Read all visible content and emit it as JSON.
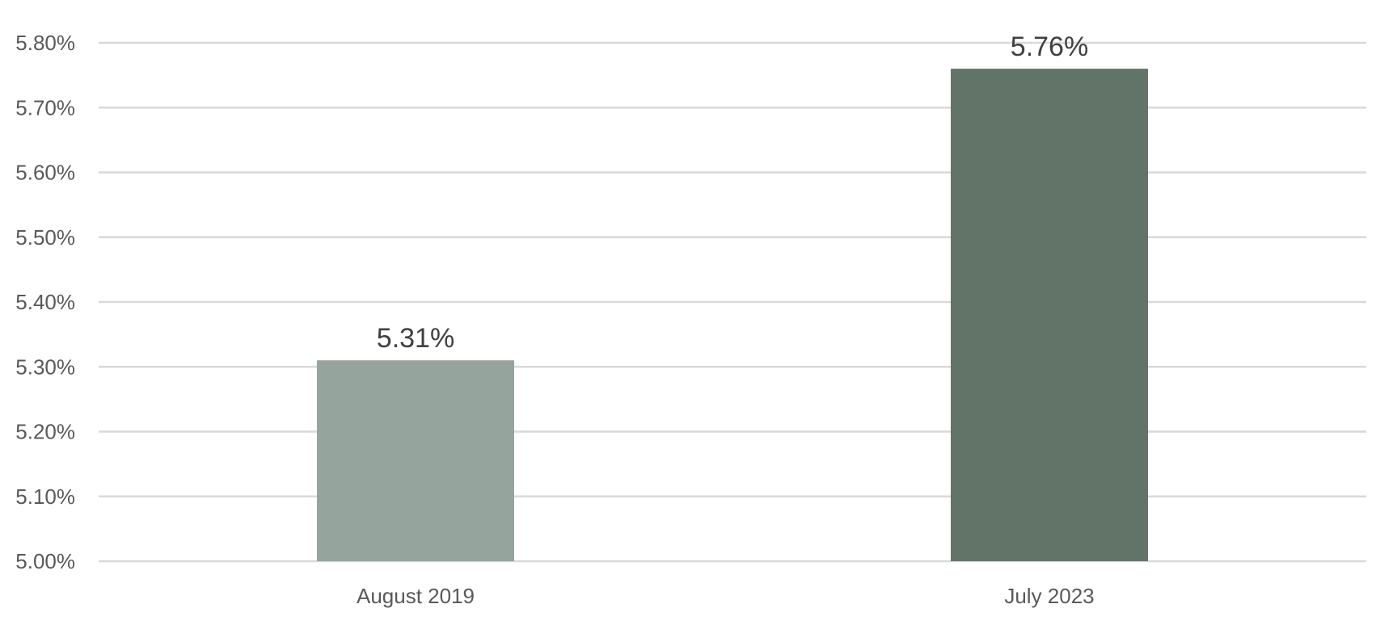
{
  "chart_data": {
    "type": "bar",
    "title": "",
    "xlabel": "",
    "ylabel": "",
    "categories": [
      "August 2019",
      "July 2023"
    ],
    "values": [
      5.31,
      5.76
    ],
    "data_labels": [
      "5.31%",
      "5.76%"
    ],
    "ylim": [
      5.0,
      5.8
    ],
    "yticks": [
      5.0,
      5.1,
      5.2,
      5.3,
      5.4,
      5.5,
      5.6,
      5.7,
      5.8
    ],
    "ytick_labels": [
      "5.00%",
      "5.10%",
      "5.20%",
      "5.30%",
      "5.40%",
      "5.50%",
      "5.60%",
      "5.70%",
      "5.80%"
    ],
    "colors": [
      "#95a59d",
      "#627467"
    ],
    "grid": true,
    "legend": "none"
  }
}
